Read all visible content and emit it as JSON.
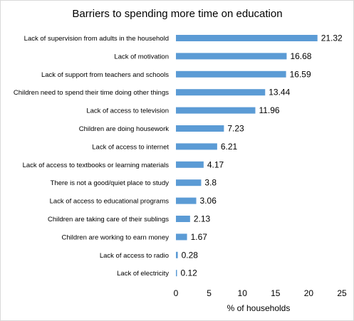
{
  "chart_data": {
    "type": "bar",
    "orientation": "horizontal",
    "title": "Barriers to spending more time on education",
    "xlabel": "% of households",
    "ylabel": "",
    "xlim": [
      0,
      25
    ],
    "x_ticks": [
      "0",
      "5",
      "10",
      "15",
      "20",
      "25"
    ],
    "grid": false,
    "legend": "none",
    "bar_color": "#5b9bd5",
    "categories": [
      "Lack of supervision from adults in the household",
      "Lack of motivation",
      "Lack of support from teachers and schools",
      "Children need to spend their time doing other things",
      "Lack of access to television",
      "Children are doing housework",
      "Lack of access to internet",
      "Lack of access to textbooks or learning materials",
      "There is not a good/quiet place to study",
      "Lack of access to educational programs",
      "Children are taking care of their sublings",
      "Children are working to earn money",
      "Lack of access to radio",
      "Lack of electricity"
    ],
    "values": [
      21.32,
      16.68,
      16.59,
      13.44,
      11.96,
      7.23,
      6.21,
      4.17,
      3.8,
      3.06,
      2.13,
      1.67,
      0.28,
      0.12
    ],
    "data_labels": [
      "21.32",
      "16.68",
      "16.59",
      "13.44",
      "11.96",
      "7.23",
      "6.21",
      "4.17",
      "3.8",
      "3.06",
      "2.13",
      "1.67",
      "0.28",
      "0.12"
    ]
  }
}
